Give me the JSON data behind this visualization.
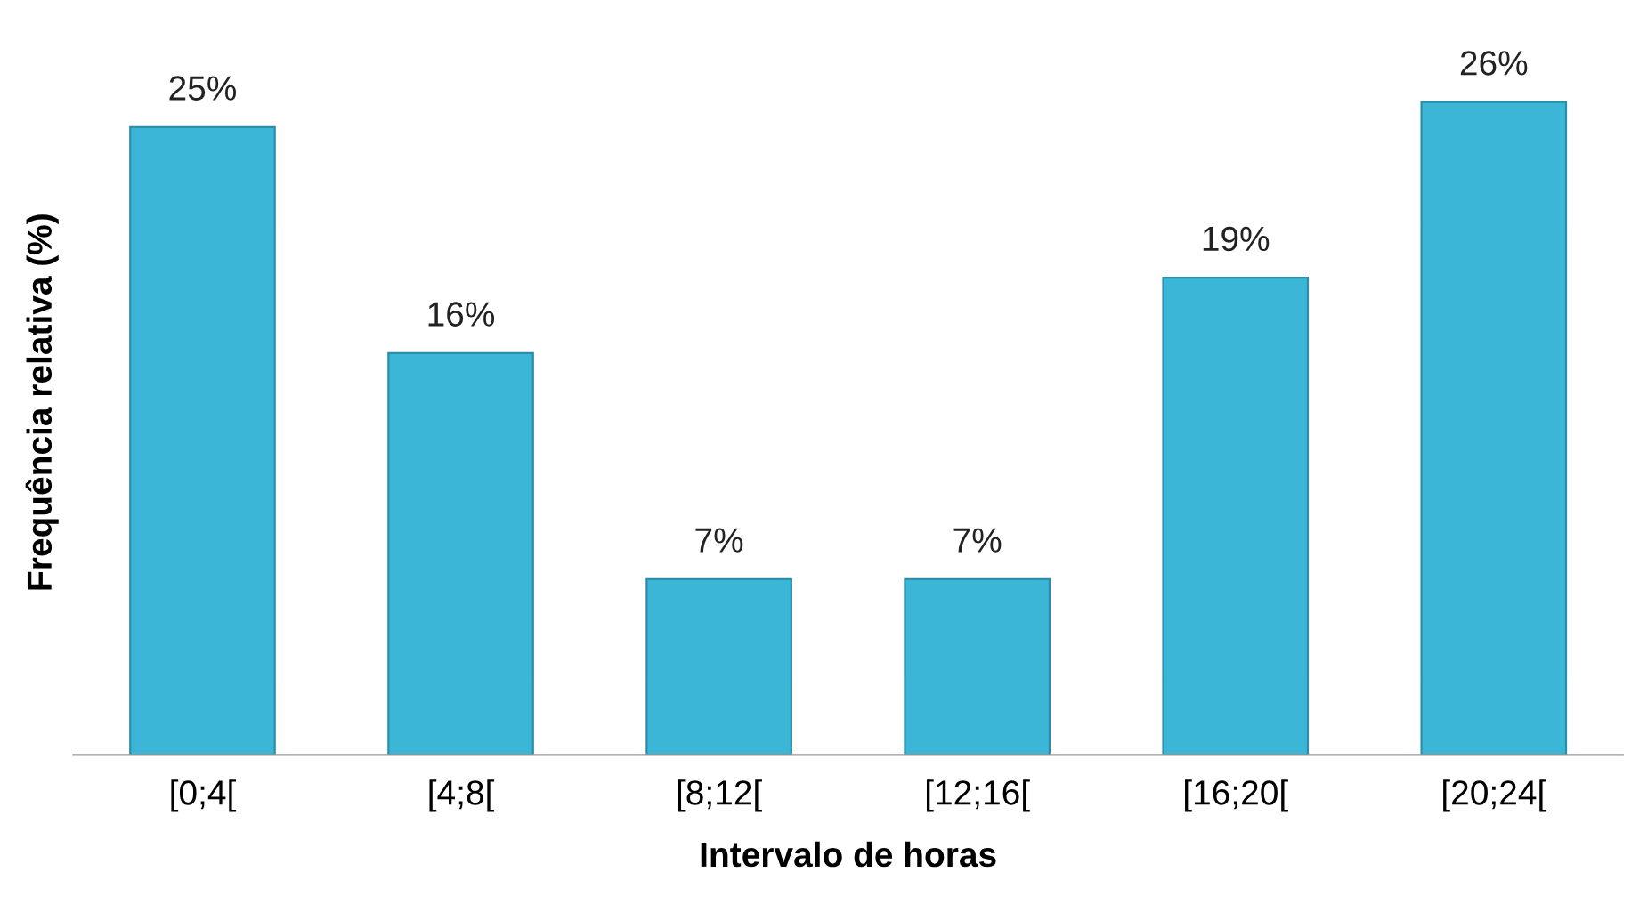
{
  "chart_data": {
    "type": "bar",
    "xlabel": "Intervalo de horas",
    "ylabel": "Frequência relativa (%)",
    "categories": [
      "[0;4[",
      "[4;8[",
      "[8;12[",
      "[12;16[",
      "[16;20[",
      "[20;24["
    ],
    "values": [
      25,
      16,
      7,
      7,
      19,
      26
    ],
    "value_labels": [
      "25%",
      "16%",
      "7%",
      "7%",
      "19%",
      "26%"
    ],
    "color": "#3bb6d6",
    "grid": false,
    "legend": false
  }
}
